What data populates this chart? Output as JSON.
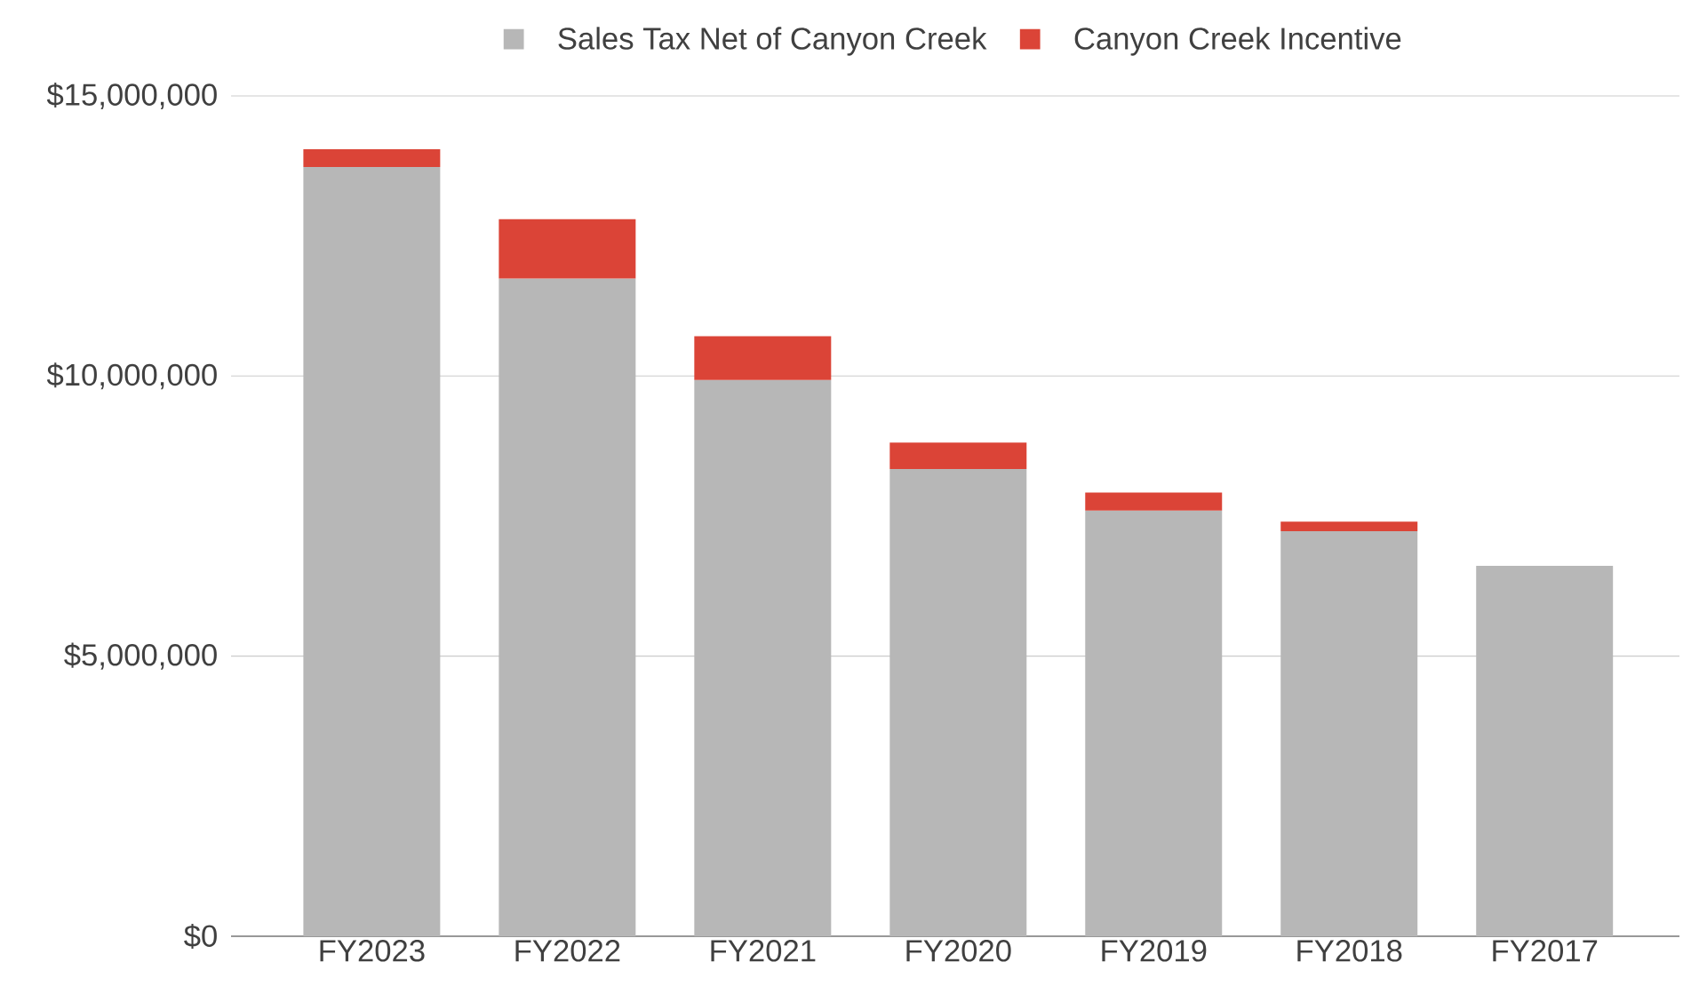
{
  "chart_data": {
    "type": "bar",
    "stacked": true,
    "categories": [
      "FY2023",
      "FY2022",
      "FY2021",
      "FY2020",
      "FY2019",
      "FY2018",
      "FY2017"
    ],
    "series": [
      {
        "name": "Sales Tax Net of Canyon Creek",
        "color": "#b7b7b7",
        "values": [
          13730000,
          11740000,
          9930000,
          8340000,
          7600000,
          7230000,
          6610000
        ]
      },
      {
        "name": "Canyon Creek Incentive",
        "color": "#db4437",
        "values": [
          320000,
          1060000,
          780000,
          470000,
          320000,
          170000,
          null
        ]
      }
    ],
    "ylim": [
      0,
      15000000
    ],
    "yticks": [
      {
        "value": 0,
        "label": "$0"
      },
      {
        "value": 5000000,
        "label": "$5,000,000"
      },
      {
        "value": 10000000,
        "label": "$10,000,000"
      },
      {
        "value": 15000000,
        "label": "$15,000,000"
      }
    ],
    "grid": "y",
    "legend": "top"
  }
}
